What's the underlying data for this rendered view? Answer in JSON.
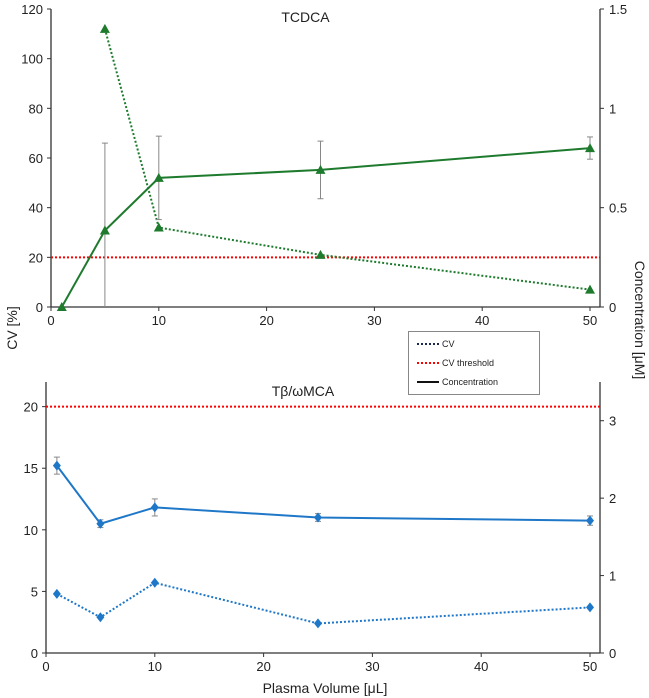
{
  "chart_data": [
    {
      "type": "line",
      "title": "TCDCA",
      "x": [
        1,
        5,
        10,
        25,
        50
      ],
      "xlim": [
        0,
        50
      ],
      "xticks": [
        "0",
        "10",
        "20",
        "30",
        "40",
        "50"
      ],
      "ylim_left": [
        0,
        120
      ],
      "yticks_left": [
        "0",
        "20",
        "40",
        "60",
        "80",
        "100",
        "120"
      ],
      "ylim_right": [
        0,
        1.5
      ],
      "yticks_right": [
        "0",
        "0.5",
        "1",
        "1.5"
      ],
      "color": "#1e7b2e",
      "marker": "triangle",
      "series": [
        {
          "name": "CV",
          "axis": "left",
          "style": "dotted",
          "x": [
            5,
            10,
            25,
            50
          ],
          "values": [
            112,
            32,
            21,
            7
          ]
        },
        {
          "name": "Concentration",
          "axis": "right",
          "style": "solid",
          "x": [
            1,
            5,
            10,
            25,
            50
          ],
          "values": [
            0,
            0.385,
            0.65,
            0.69,
            0.8
          ],
          "errors": [
            0,
            0.44,
            0.21,
            0.145,
            0.056
          ]
        }
      ],
      "threshold": {
        "name": "CV threshold",
        "value": 20,
        "color": "#ff0000"
      }
    },
    {
      "type": "line",
      "title": "Tβ/ωMCA",
      "x": [
        1,
        5,
        10,
        25,
        50
      ],
      "xlim": [
        0,
        50
      ],
      "xticks": [
        "0",
        "10",
        "20",
        "30",
        "40",
        "50"
      ],
      "ylim_left": [
        0,
        22
      ],
      "yticks_left": [
        "0",
        "5",
        "10",
        "15",
        "20"
      ],
      "ylim_right": [
        0,
        3.5
      ],
      "yticks_right": [
        "0",
        "1",
        "2",
        "3"
      ],
      "color": "#1f77c8",
      "marker": "diamond",
      "series": [
        {
          "name": "CV",
          "axis": "left",
          "style": "dotted",
          "x": [
            1,
            5,
            10,
            25,
            50
          ],
          "values": [
            4.8,
            2.9,
            5.7,
            2.4,
            3.7
          ]
        },
        {
          "name": "Concentration",
          "axis": "right",
          "style": "solid",
          "x": [
            1,
            5,
            10,
            25,
            50
          ],
          "values": [
            2.42,
            1.67,
            1.88,
            1.75,
            1.71
          ],
          "errors": [
            0.11,
            0.05,
            0.11,
            0.05,
            0.06
          ]
        }
      ],
      "threshold": {
        "name": "CV threshold",
        "value": 20,
        "color": "#ff0000"
      }
    }
  ],
  "axes": {
    "ylabel_left": "CV [%]",
    "ylabel_right": "Concentration [μM]",
    "xlabel": "Plasma Volume [μL]"
  },
  "legend": {
    "placement": "center-right",
    "items": [
      {
        "label": "CV",
        "style": "dotted"
      },
      {
        "label": "CV threshold",
        "style": "red-dotted"
      },
      {
        "label": "Concentration",
        "style": "solid"
      }
    ]
  }
}
